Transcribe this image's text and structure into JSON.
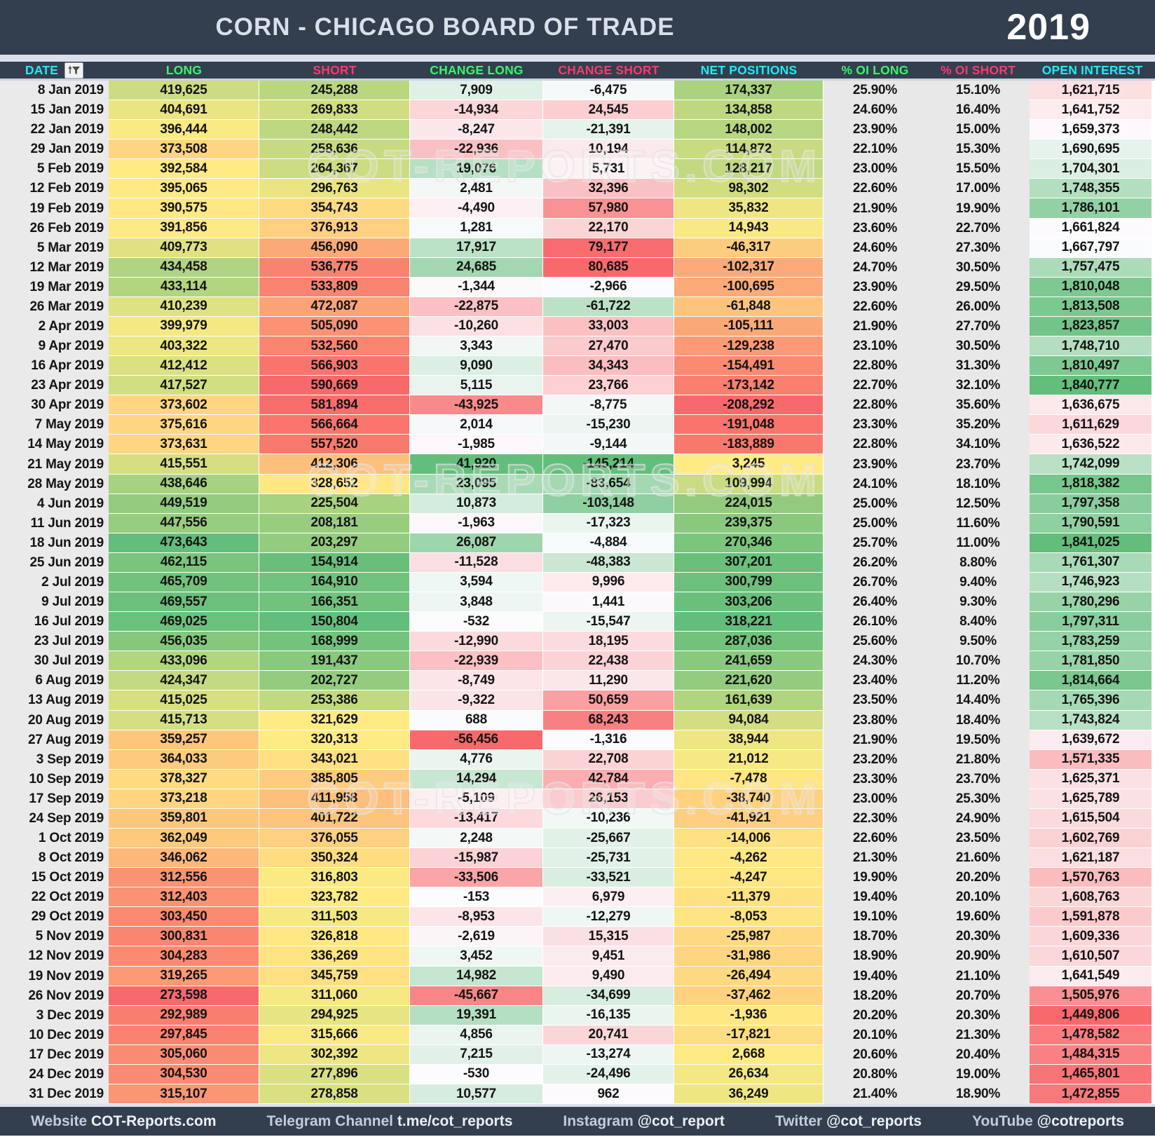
{
  "header": {
    "title": "CORN - CHICAGO BOARD OF TRADE",
    "year": "2019"
  },
  "watermark": {
    "text": "COT-REPORTS.COM"
  },
  "palette": {
    "titlebar": "#333E4E",
    "strip": "#DCE0EC",
    "date_bg": "#EAEAEA",
    "pct_bg": "#E8E8E8",
    "cell_text": "#141414",
    "title_text": "#D9DFEB",
    "year_text": "#FFFFFF",
    "scale_red": "#F8696B",
    "scale_yellow": "#FFEB84",
    "scale_green": "#63BE7B",
    "scale_white": "#FCFCFF",
    "header_colors": {
      "cyan": "#22E9F6",
      "green": "#3BF56D",
      "pink": "#FA3A70"
    }
  },
  "chart_data": {
    "type": "table",
    "title": "CORN - CHICAGO BOARD OF TRADE",
    "year": "2019",
    "columns": [
      {
        "label": "DATE",
        "color": "cyan"
      },
      {
        "label": "LONG",
        "color": "green"
      },
      {
        "label": "SHORT",
        "color": "pink"
      },
      {
        "label": "CHANGE LONG",
        "color": "green"
      },
      {
        "label": "CHANGE SHORT",
        "color": "pink"
      },
      {
        "label": "NET POSITIONS",
        "color": "cyan"
      },
      {
        "label": "% OI LONG",
        "color": "green"
      },
      {
        "label": "% OI SHORT",
        "color": "pink"
      },
      {
        "label": "OPEN INTEREST",
        "color": "cyan"
      }
    ],
    "color_scales": {
      "LONG": "red-yellow-green (min-median-max)",
      "SHORT": "green-yellow-red (min-median-max)",
      "CHANGE LONG": "white at 0, green positive, red negative",
      "CHANGE SHORT": "white at 0, red positive, green negative",
      "NET POSITIONS": "red-yellow-green (min-median-max)",
      "OPEN INTEREST": "red-white-green (min-median-max)"
    },
    "rows": [
      [
        "8 Jan 2019",
        419625,
        245288,
        7909,
        -6475,
        174337,
        25.9,
        15.1,
        1621715
      ],
      [
        "15 Jan 2019",
        404691,
        269833,
        -14934,
        24545,
        134858,
        24.6,
        16.4,
        1641752
      ],
      [
        "22 Jan 2019",
        396444,
        248442,
        -8247,
        -21391,
        148002,
        23.9,
        15.0,
        1659373
      ],
      [
        "29 Jan 2019",
        373508,
        258636,
        -22936,
        10194,
        114872,
        22.1,
        15.3,
        1690695
      ],
      [
        "5 Feb 2019",
        392584,
        264367,
        19076,
        5731,
        128217,
        23.0,
        15.5,
        1704301
      ],
      [
        "12 Feb 2019",
        395065,
        296763,
        2481,
        32396,
        98302,
        22.6,
        17.0,
        1748355
      ],
      [
        "19 Feb 2019",
        390575,
        354743,
        -4490,
        57980,
        35832,
        21.9,
        19.9,
        1786101
      ],
      [
        "26 Feb 2019",
        391856,
        376913,
        1281,
        22170,
        14943,
        23.6,
        22.7,
        1661824
      ],
      [
        "5 Mar 2019",
        409773,
        456090,
        17917,
        79177,
        -46317,
        24.6,
        27.3,
        1667797
      ],
      [
        "12 Mar 2019",
        434458,
        536775,
        24685,
        80685,
        -102317,
        24.7,
        30.5,
        1757475
      ],
      [
        "19 Mar 2019",
        433114,
        533809,
        -1344,
        -2966,
        -100695,
        23.9,
        29.5,
        1810048
      ],
      [
        "26 Mar 2019",
        410239,
        472087,
        -22875,
        -61722,
        -61848,
        22.6,
        26.0,
        1813508
      ],
      [
        "2 Apr 2019",
        399979,
        505090,
        -10260,
        33003,
        -105111,
        21.9,
        27.7,
        1823857
      ],
      [
        "9 Apr 2019",
        403322,
        532560,
        3343,
        27470,
        -129238,
        23.1,
        30.5,
        1748710
      ],
      [
        "16 Apr 2019",
        412412,
        566903,
        9090,
        34343,
        -154491,
        22.8,
        31.3,
        1810497
      ],
      [
        "23 Apr 2019",
        417527,
        590669,
        5115,
        23766,
        -173142,
        22.7,
        32.1,
        1840777
      ],
      [
        "30 Apr 2019",
        373602,
        581894,
        -43925,
        -8775,
        -208292,
        22.8,
        35.6,
        1636675
      ],
      [
        "7 May 2019",
        375616,
        566664,
        2014,
        -15230,
        -191048,
        23.3,
        35.2,
        1611629
      ],
      [
        "14 May 2019",
        373631,
        557520,
        -1985,
        -9144,
        -183889,
        22.8,
        34.1,
        1636522
      ],
      [
        "21 May 2019",
        415551,
        412306,
        41920,
        -145214,
        3245,
        23.9,
        23.7,
        1742099
      ],
      [
        "28 May 2019",
        438646,
        328652,
        23095,
        -83654,
        109994,
        24.1,
        18.1,
        1818382
      ],
      [
        "4 Jun 2019",
        449519,
        225504,
        10873,
        -103148,
        224015,
        25.0,
        12.5,
        1797358
      ],
      [
        "11 Jun 2019",
        447556,
        208181,
        -1963,
        -17323,
        239375,
        25.0,
        11.6,
        1790591
      ],
      [
        "18 Jun 2019",
        473643,
        203297,
        26087,
        -4884,
        270346,
        25.7,
        11.0,
        1841025
      ],
      [
        "25 Jun 2019",
        462115,
        154914,
        -11528,
        -48383,
        307201,
        26.2,
        8.8,
        1761307
      ],
      [
        "2 Jul 2019",
        465709,
        164910,
        3594,
        9996,
        300799,
        26.7,
        9.4,
        1746923
      ],
      [
        "9 Jul 2019",
        469557,
        166351,
        3848,
        1441,
        303206,
        26.4,
        9.3,
        1780296
      ],
      [
        "16 Jul 2019",
        469025,
        150804,
        -532,
        -15547,
        318221,
        26.1,
        8.4,
        1797311
      ],
      [
        "23 Jul 2019",
        456035,
        168999,
        -12990,
        18195,
        287036,
        25.6,
        9.5,
        1783259
      ],
      [
        "30 Jul 2019",
        433096,
        191437,
        -22939,
        22438,
        241659,
        24.3,
        10.7,
        1781850
      ],
      [
        "6 Aug 2019",
        424347,
        202727,
        -8749,
        11290,
        221620,
        23.4,
        11.2,
        1814664
      ],
      [
        "13 Aug 2019",
        415025,
        253386,
        -9322,
        50659,
        161639,
        23.5,
        14.4,
        1765396
      ],
      [
        "20 Aug 2019",
        415713,
        321629,
        688,
        68243,
        94084,
        23.8,
        18.4,
        1743824
      ],
      [
        "27 Aug 2019",
        359257,
        320313,
        -56456,
        -1316,
        38944,
        21.9,
        19.5,
        1639672
      ],
      [
        "3 Sep 2019",
        364033,
        343021,
        4776,
        22708,
        21012,
        23.2,
        21.8,
        1571335
      ],
      [
        "10 Sep 2019",
        378327,
        385805,
        14294,
        42784,
        -7478,
        23.3,
        23.7,
        1625371
      ],
      [
        "17 Sep 2019",
        373218,
        411958,
        -5109,
        26153,
        -38740,
        23.0,
        25.3,
        1625789
      ],
      [
        "24 Sep 2019",
        359801,
        401722,
        -13417,
        -10236,
        -41921,
        22.3,
        24.9,
        1615504
      ],
      [
        "1 Oct 2019",
        362049,
        376055,
        2248,
        -25667,
        -14006,
        22.6,
        23.5,
        1602769
      ],
      [
        "8 Oct 2019",
        346062,
        350324,
        -15987,
        -25731,
        -4262,
        21.3,
        21.6,
        1621187
      ],
      [
        "15 Oct 2019",
        312556,
        316803,
        -33506,
        -33521,
        -4247,
        19.9,
        20.2,
        1570763
      ],
      [
        "22 Oct 2019",
        312403,
        323782,
        -153,
        6979,
        -11379,
        19.4,
        20.1,
        1608763
      ],
      [
        "29 Oct 2019",
        303450,
        311503,
        -8953,
        -12279,
        -8053,
        19.1,
        19.6,
        1591878
      ],
      [
        "5 Nov 2019",
        300831,
        326818,
        -2619,
        15315,
        -25987,
        18.7,
        20.3,
        1609336
      ],
      [
        "12 Nov 2019",
        304283,
        336269,
        3452,
        9451,
        -31986,
        18.9,
        20.9,
        1610507
      ],
      [
        "19 Nov 2019",
        319265,
        345759,
        14982,
        9490,
        -26494,
        19.4,
        21.1,
        1641549
      ],
      [
        "26 Nov 2019",
        273598,
        311060,
        -45667,
        -34699,
        -37462,
        18.2,
        20.7,
        1505976
      ],
      [
        "3 Dec 2019",
        292989,
        294925,
        19391,
        -16135,
        -1936,
        20.2,
        20.3,
        1449806
      ],
      [
        "10 Dec 2019",
        297845,
        315666,
        4856,
        20741,
        -17821,
        20.1,
        21.3,
        1478582
      ],
      [
        "17 Dec 2019",
        305060,
        302392,
        7215,
        -13274,
        2668,
        20.6,
        20.4,
        1484315
      ],
      [
        "24 Dec 2019",
        304530,
        277896,
        -530,
        -24496,
        26634,
        20.8,
        19.0,
        1465801
      ],
      [
        "31 Dec 2019",
        315107,
        278858,
        10577,
        962,
        36249,
        21.4,
        18.9,
        1472855
      ]
    ]
  },
  "footer": {
    "items": [
      {
        "key": "website",
        "label": "Website",
        "value": "COT-Reports.com"
      },
      {
        "key": "telegram",
        "label": "Telegram Channel",
        "value": "t.me/cot_reports"
      },
      {
        "key": "instagram",
        "label": "Instagram",
        "value": "@cot_report"
      },
      {
        "key": "twitter",
        "label": "Twitter",
        "value": "@cot_reports"
      },
      {
        "key": "youtube",
        "label": "YouTube",
        "value": "@cotreports"
      }
    ]
  }
}
